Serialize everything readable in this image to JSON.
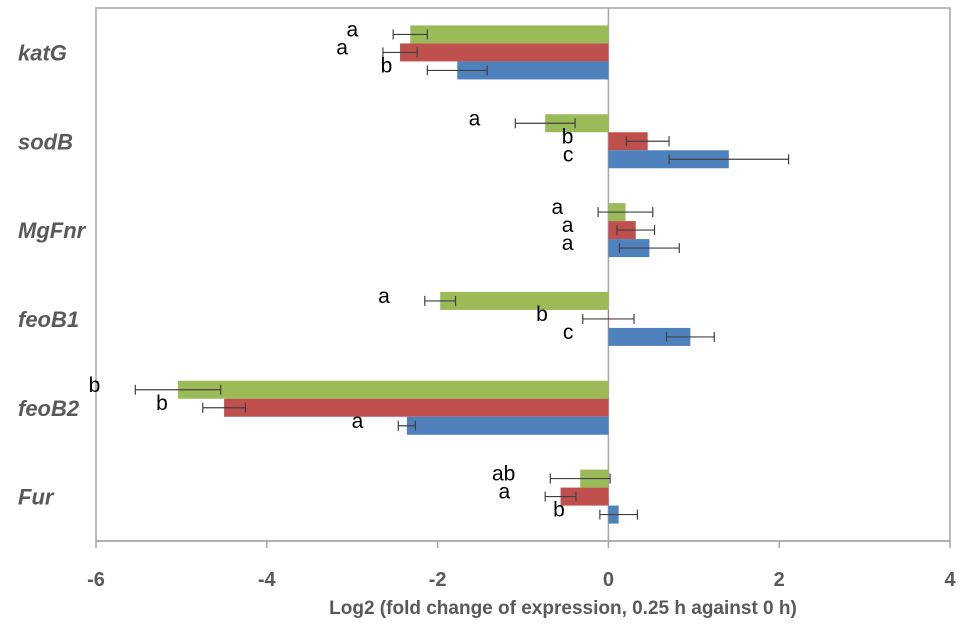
{
  "chart_data": {
    "type": "bar",
    "orientation": "horizontal",
    "categories": [
      "katG",
      "sodB",
      "MgFnr",
      "feoB1",
      "feoB2",
      "Fur"
    ],
    "series": [
      {
        "color": "#9bbb59",
        "values": [
          -2.32,
          -0.74,
          0.2,
          -1.97,
          -5.04,
          -0.33
        ],
        "errors": [
          0.2,
          0.35,
          0.32,
          0.18,
          0.5,
          0.35
        ],
        "labels": [
          "a",
          "a",
          "a",
          "a",
          "b",
          "ab"
        ]
      },
      {
        "color": "#c0504d",
        "values": [
          -2.44,
          0.46,
          0.32,
          0.0,
          -4.5,
          -0.56
        ],
        "errors": [
          0.2,
          0.25,
          0.22,
          0.3,
          0.25,
          0.18
        ],
        "labels": [
          "a",
          "b",
          "a",
          "b",
          "b",
          "a"
        ]
      },
      {
        "color": "#4f81bd",
        "values": [
          -1.77,
          1.41,
          0.48,
          0.96,
          -2.36,
          0.12
        ],
        "errors": [
          0.35,
          0.7,
          0.35,
          0.28,
          0.1,
          0.22
        ],
        "labels": [
          "b",
          "c",
          "a",
          "c",
          "a",
          "b"
        ]
      }
    ],
    "xlim": [
      -6,
      4
    ],
    "xticks": [
      "-6",
      "-4",
      "-2",
      "0",
      "2",
      "4"
    ],
    "xlabel": "Log2 (fold change of expression, 0.25 h against 0 h)",
    "ylabel": "",
    "title": "",
    "grid": false,
    "legend": "none"
  }
}
